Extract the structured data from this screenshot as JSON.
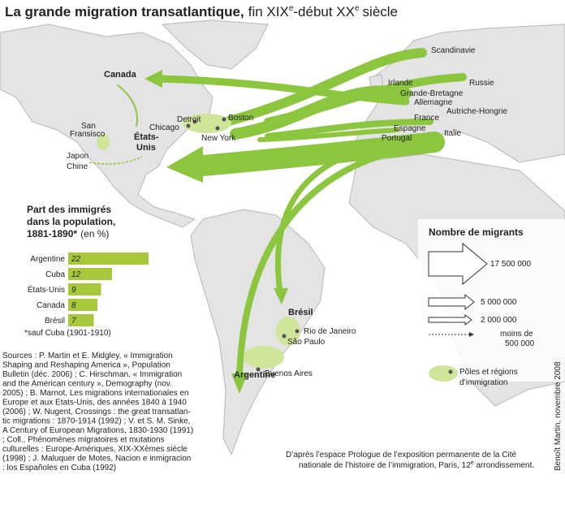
{
  "title": [
    "La grande migration transatlantique,",
    "fin XIX",
    "e",
    "-début XX",
    "e",
    "siècle"
  ],
  "places": {
    "canada": "Canada",
    "usa": [
      "États-",
      "Unis"
    ],
    "sf": [
      "San",
      "Fransisco"
    ],
    "asia": [
      "Japon",
      "Chine"
    ],
    "detroit": "Detroit",
    "chicago": "Chicago",
    "boston": "Boston",
    "newyork": "New York",
    "scandinavie": "Scandinavie",
    "russie": "Russie",
    "irlande": "Irlande",
    "gb": "Grande-Bretagne",
    "allemagne": "Allemagne",
    "autriche": "Autriche-Hongrie",
    "france": "France",
    "espagne": "Espagne",
    "portugal": "Portugal",
    "italie": "Italie",
    "bresil": "Brésil",
    "rio": "Rio de Janeiro",
    "saopaulo": "São Paulo",
    "buenosaires": "Buenos Aires",
    "argentine": "Argentine"
  },
  "chart_data": {
    "type": "bar",
    "orientation": "horizontal",
    "title": [
      "Part des immigrés",
      "dans la population,",
      "1881-1890*"
    ],
    "title_unit": "(en %)",
    "categories": [
      "Argentine",
      "Cuba",
      "États-Unis",
      "Canada",
      "Brésil"
    ],
    "values": [
      22,
      12,
      9,
      8,
      7
    ],
    "color": "#a8c83c",
    "note": "*sauf Cuba (1901-1910)"
  },
  "legend": {
    "title": "Nombre de migrants",
    "items": [
      "17 500 000",
      "5 000 000",
      "2 000 000",
      [
        "moins de",
        "500 000"
      ]
    ],
    "poles": [
      "Pôles et régions",
      "d’immigration"
    ]
  },
  "sources": [
    "Sources : P. Martin et E. Midgley, « Immigration",
    "Shaping and Reshaping America », Population",
    "Bulletin (déc. 2006) ; C. Hirschman, « Immigration",
    "and the American century », Demography (nov.",
    "2005) ; B. Marnot, Les migrations internationales en",
    "Europe et aux Etats-Unis, des années 1840 à 1940",
    "(2006) ; W. Nugent, Crossings : the great transatlan-",
    "tic migrations : 1870-1914 (1992) ; V. et S. M. Sinke,",
    "A Century of European Migrations, 1830-1930 (1991)",
    "; Coll., Phénomènes migratoires et mutations",
    "culturelles : Europe-Amériques, XIX-XXèmes siècle",
    "(1998) ; J. Maluquer de Motes, Nacion e inmigracion",
    ": los Españoles en Cuba (1992)"
  ],
  "footer": [
    "D’après l’espace Prologue de l’exposition permanente de la Cité",
    "nationale de l’histoire de l’immigration, Paris, 12",
    "e",
    " arrondissement."
  ],
  "credit": "Benoît Martin, novembre 2008"
}
